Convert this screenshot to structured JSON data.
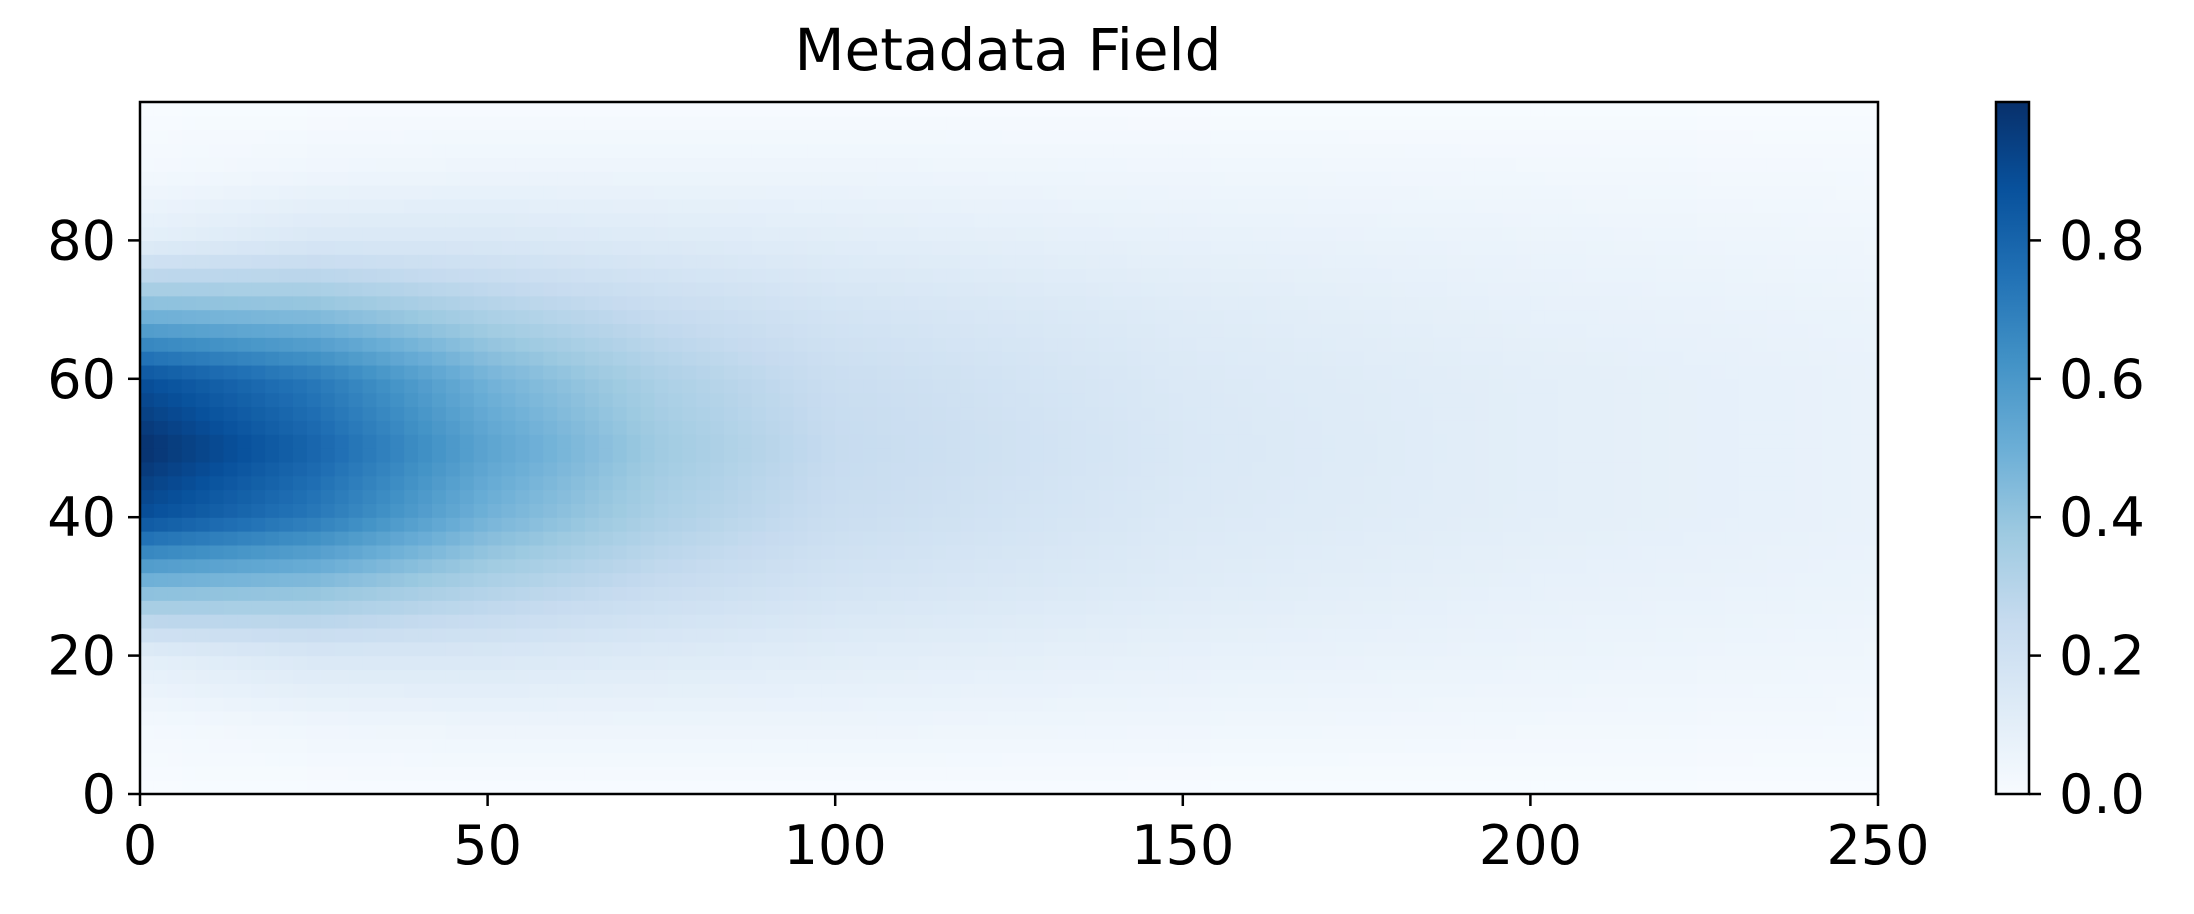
{
  "chart_data": {
    "type": "heatmap",
    "title": "Metadata Field",
    "xlabel": "",
    "ylabel": "",
    "colormap": "Blues",
    "grid": false,
    "xlim": [
      0,
      250
    ],
    "ylim": [
      0,
      100
    ],
    "x_ticks": [
      0,
      50,
      100,
      150,
      200,
      250
    ],
    "y_ticks": [
      0,
      20,
      40,
      60,
      80
    ],
    "x_tick_labels": [
      "0",
      "50",
      "100",
      "150",
      "200",
      "250"
    ],
    "y_tick_labels": [
      "0",
      "20",
      "40",
      "60",
      "80"
    ],
    "colorbar": {
      "range": [
        0,
        1
      ],
      "ticks": [
        0.0,
        0.2,
        0.4,
        0.6,
        0.8
      ],
      "tick_labels": [
        "0.0",
        "0.2",
        "0.4",
        "0.6",
        "0.8"
      ]
    },
    "field": {
      "description_of_values": "intensity peaks at the left edge",
      "peak_value": 1.0,
      "peak_x": 0,
      "peak_y": 50,
      "grid_x": [
        0,
        25,
        50,
        75,
        100,
        150,
        200,
        250
      ],
      "grid_y": [
        0,
        10,
        20,
        30,
        40,
        50,
        60,
        70,
        80,
        90,
        100
      ],
      "values": [
        [
          0.0,
          0.02,
          0.1,
          0.45,
          0.88,
          1.0,
          0.88,
          0.45,
          0.1,
          0.02,
          0.0
        ],
        [
          0.0,
          0.04,
          0.15,
          0.42,
          0.72,
          0.8,
          0.72,
          0.42,
          0.15,
          0.04,
          0.0
        ],
        [
          0.0,
          0.05,
          0.15,
          0.32,
          0.48,
          0.55,
          0.48,
          0.32,
          0.15,
          0.05,
          0.0
        ],
        [
          0.0,
          0.05,
          0.13,
          0.24,
          0.33,
          0.37,
          0.33,
          0.24,
          0.13,
          0.05,
          0.0
        ],
        [
          0.0,
          0.05,
          0.11,
          0.18,
          0.23,
          0.25,
          0.23,
          0.18,
          0.11,
          0.05,
          0.0
        ],
        [
          0.0,
          0.04,
          0.08,
          0.12,
          0.14,
          0.15,
          0.14,
          0.12,
          0.08,
          0.04,
          0.0
        ],
        [
          0.0,
          0.03,
          0.06,
          0.08,
          0.1,
          0.1,
          0.1,
          0.08,
          0.06,
          0.03,
          0.0
        ],
        [
          0.0,
          0.02,
          0.04,
          0.06,
          0.07,
          0.07,
          0.07,
          0.06,
          0.04,
          0.02,
          0.0
        ]
      ]
    }
  }
}
